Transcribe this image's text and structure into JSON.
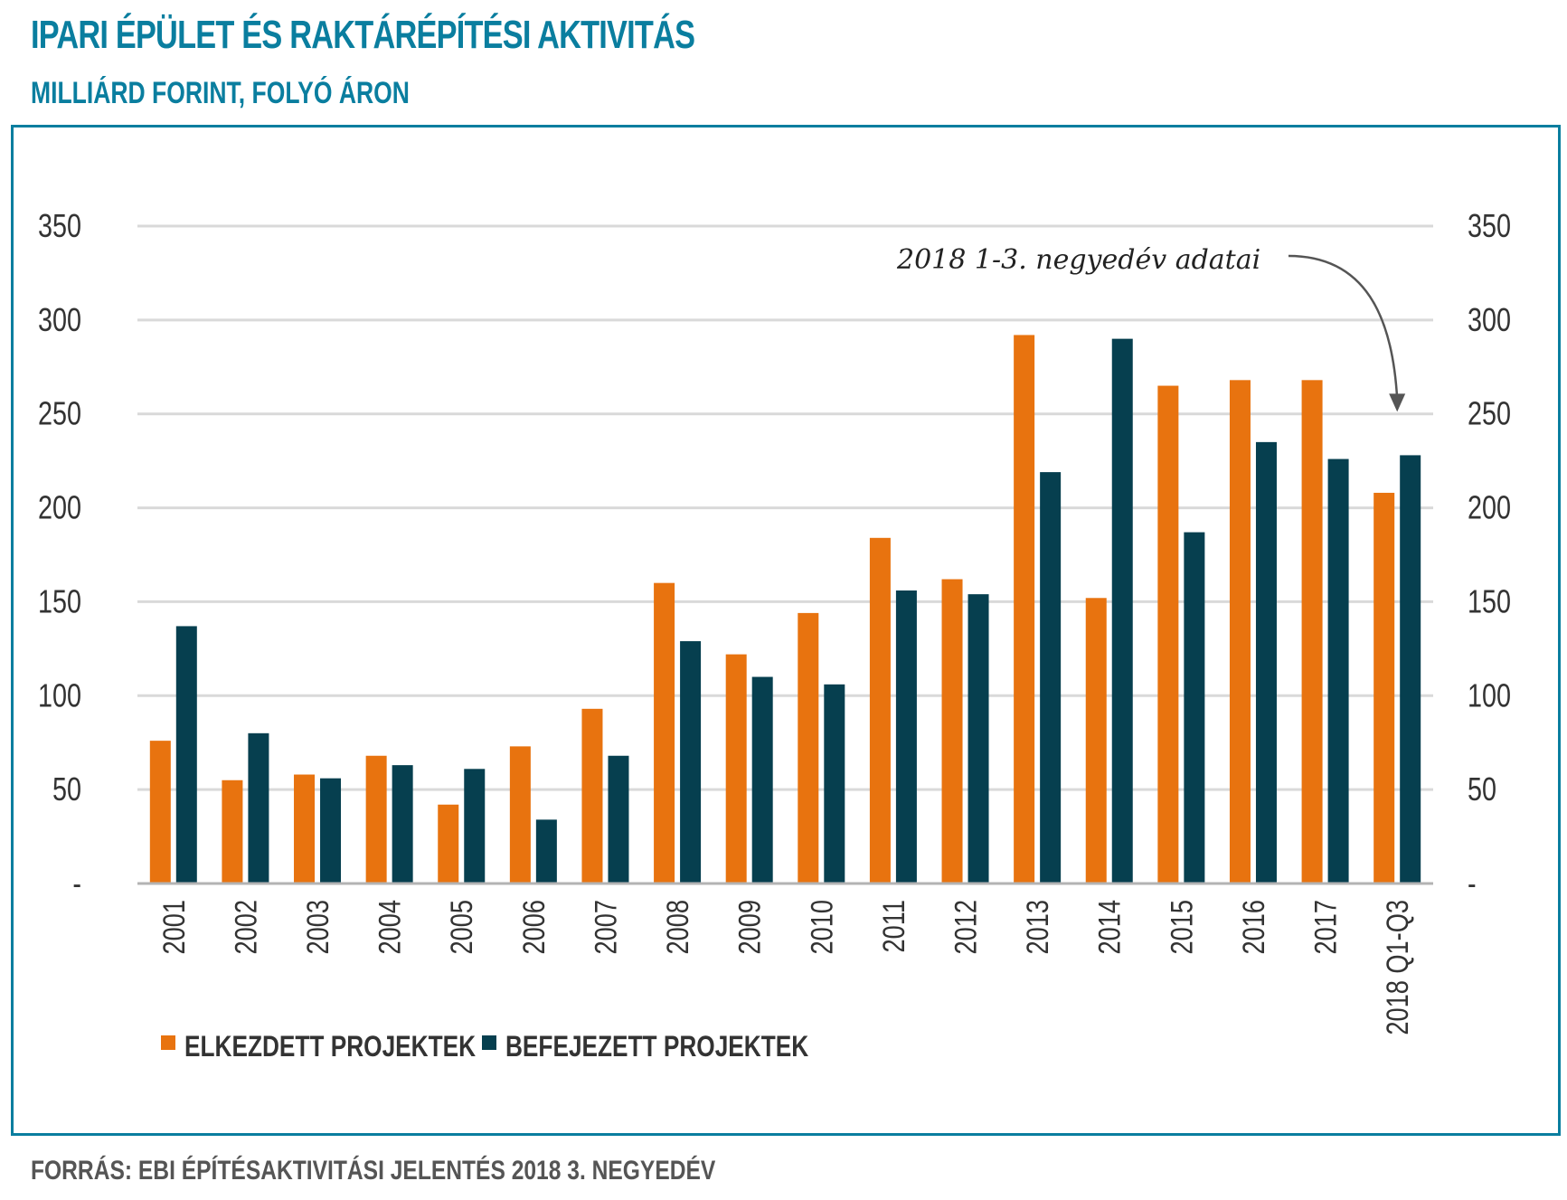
{
  "header": {
    "title": "IPARI ÉPÜLET ÉS RAKTÁRÉPÍTÉSI AKTIVITÁS",
    "subtitle": "MILLIÁRD FORINT, FOLYÓ ÁRON"
  },
  "footer": {
    "source": "FORRÁS: EBI ÉPÍTÉSAKTIVITÁSI JELENTÉS 2018 3. NEGYEDÉV"
  },
  "colors": {
    "accent": "#0a7e9f",
    "series_started": "#e8730f",
    "series_completed": "#063f4f",
    "grid": "#d9d9d9",
    "axis": "#b3b3b3"
  },
  "chart_data": {
    "type": "bar",
    "title": "IPARI ÉPÜLET ÉS RAKTÁRÉPÍTÉSI AKTIVITÁS",
    "subtitle": "MILLIÁRD FORINT, FOLYÓ ÁRON",
    "xlabel": "",
    "ylabel": "",
    "ylim": [
      0,
      350
    ],
    "yticks": [
      0,
      50,
      100,
      150,
      200,
      250,
      300,
      350
    ],
    "ytick_labels": [
      "-",
      "50",
      "100",
      "150",
      "200",
      "250",
      "300",
      "350"
    ],
    "dual_y_axis": true,
    "grid": true,
    "legend_position": "bottom-left",
    "categories": [
      "2001",
      "2002",
      "2003",
      "2004",
      "2005",
      "2006",
      "2007",
      "2008",
      "2009",
      "2010",
      "2011",
      "2012",
      "2013",
      "2014",
      "2015",
      "2016",
      "2017",
      "2018 Q1-Q3"
    ],
    "series": [
      {
        "name": "ELKEZDETT PROJEKTEK",
        "color": "#e8730f",
        "values": [
          76,
          55,
          58,
          68,
          42,
          73,
          93,
          160,
          122,
          144,
          184,
          162,
          292,
          152,
          265,
          268,
          268,
          208
        ]
      },
      {
        "name": "BEFEJEZETT PROJEKTEK",
        "color": "#063f4f",
        "values": [
          137,
          80,
          56,
          63,
          61,
          34,
          68,
          129,
          110,
          106,
          156,
          154,
          219,
          290,
          187,
          235,
          226,
          228
        ]
      }
    ],
    "annotations": [
      {
        "text": "2018 1-3. negyedév adatai",
        "target_category": "2018 Q1-Q3"
      }
    ]
  }
}
